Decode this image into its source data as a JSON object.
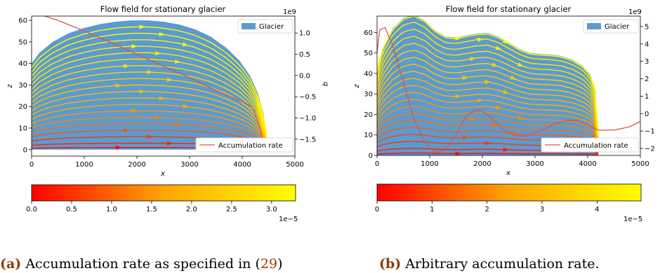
{
  "chart_data": [
    {
      "type": "streamplot",
      "panel": "a",
      "title": "Flow field for stationary glacier",
      "xlabel": "x",
      "ylabel": "z",
      "y2label": "q",
      "xlim": [
        0,
        5000
      ],
      "ylim": [
        -3,
        62
      ],
      "y2lim": [
        -1.9,
        1.4
      ],
      "x_ticks": [
        0,
        1000,
        2000,
        3000,
        4000,
        5000
      ],
      "y_ticks": [
        0,
        10,
        20,
        30,
        40,
        50,
        60
      ],
      "y2_ticks": [
        1.0,
        0.5,
        0.0,
        -0.5,
        -1.0,
        -1.5
      ],
      "y2_tick_labels": [
        "1.0",
        "0.5",
        "0.0",
        "−0.5",
        "−1.0",
        "−1.5"
      ],
      "y2_offset_label": "1e9",
      "glacier_color": "#5b9bd0",
      "glacier_surface": {
        "x": [
          0,
          150,
          400,
          700,
          1000,
          1300,
          1600,
          1900,
          2200,
          2500,
          2800,
          3100,
          3400,
          3700,
          3950,
          4150,
          4300,
          4400,
          4450,
          4500
        ],
        "z": [
          40,
          45,
          50,
          54,
          56.5,
          58.3,
          59.4,
          60.0,
          60.0,
          59.4,
          58.1,
          55.9,
          52.5,
          47.2,
          41.3,
          34.2,
          26,
          17,
          9,
          0
        ]
      },
      "accumulation_rate": {
        "x": [
          0,
          200,
          500,
          1000,
          1500,
          2000,
          2500,
          3000,
          3500,
          4000,
          4200,
          4350,
          4420,
          4450
        ],
        "q": [
          1.45,
          1.42,
          1.3,
          1.05,
          0.78,
          0.5,
          0.22,
          -0.05,
          -0.35,
          -0.62,
          -0.74,
          -1.3,
          -1.75,
          -1.75
        ]
      },
      "legend": [
        "Glacier",
        "Accumulation rate"
      ],
      "colorbar": {
        "colors": [
          "#ff0000",
          "#ffa500",
          "#ffff00"
        ],
        "min": 0.0,
        "max": 3.3,
        "ticks": [
          0.0,
          0.5,
          1.0,
          1.5,
          2.0,
          2.5,
          3.0
        ],
        "tick_labels": [
          "0.0",
          "0.5",
          "1.0",
          "1.5",
          "2.0",
          "2.5",
          "3.0"
        ],
        "offset_label": "1e−5"
      },
      "streamlines": [
        {
          "z0": 1,
          "speed": 0.03
        },
        {
          "z0": 3,
          "speed": 0.1
        },
        {
          "z0": 6,
          "speed": 0.17
        },
        {
          "z0": 9,
          "speed": 0.25
        },
        {
          "z0": 12,
          "speed": 0.33
        },
        {
          "z0": 15,
          "speed": 0.4
        },
        {
          "z0": 18,
          "speed": 0.45
        },
        {
          "z0": 21,
          "speed": 0.5
        },
        {
          "z0": 24,
          "speed": 0.55
        },
        {
          "z0": 27,
          "speed": 0.6
        },
        {
          "z0": 30,
          "speed": 0.65
        },
        {
          "z0": 33,
          "speed": 0.7
        },
        {
          "z0": 36,
          "speed": 0.75
        },
        {
          "z0": 39,
          "speed": 0.79
        },
        {
          "z0": 42,
          "speed": 0.83
        },
        {
          "z0": 45,
          "speed": 0.87
        },
        {
          "z0": 48,
          "speed": 0.9
        },
        {
          "z0": 51,
          "speed": 0.93
        },
        {
          "z0": 54,
          "speed": 0.96
        },
        {
          "z0": 57,
          "speed": 0.98
        }
      ]
    },
    {
      "type": "streamplot",
      "panel": "b",
      "title": "Flow field for stationary glacier",
      "xlabel": "x",
      "ylabel": "z",
      "y2label": "",
      "xlim": [
        0,
        5000
      ],
      "ylim": [
        0,
        68
      ],
      "y2lim": [
        -2.4,
        5.6
      ],
      "x_ticks": [
        0,
        1000,
        2000,
        3000,
        4000,
        5000
      ],
      "y_ticks": [
        0,
        10,
        20,
        30,
        40,
        50,
        60
      ],
      "y2_ticks": [
        5,
        4,
        3,
        2,
        1,
        0,
        -1,
        -2
      ],
      "y2_tick_labels": [
        "5",
        "4",
        "3",
        "2",
        "1",
        "0",
        "−1",
        "−2"
      ],
      "y2_offset_label": "1e9",
      "glacier_color": "#5b9bd0",
      "glacier_surface": {
        "x": [
          0,
          100,
          300,
          500,
          700,
          900,
          1100,
          1300,
          1500,
          1700,
          1900,
          2100,
          2300,
          2500,
          2700,
          2900,
          3100,
          3300,
          3500,
          3700,
          3900,
          4050,
          4150,
          4200
        ],
        "z": [
          42,
          52,
          62,
          67,
          68.5,
          66,
          61,
          58,
          57.5,
          58.5,
          59.5,
          59.8,
          58,
          55,
          52,
          50,
          49.5,
          49.2,
          48.5,
          46.8,
          43.8,
          39.5,
          32,
          10
        ]
      },
      "accumulation_rate": {
        "x": [
          0,
          50,
          150,
          300,
          500,
          700,
          900,
          1100,
          1300,
          1500,
          1700,
          1900,
          2000,
          2200,
          2400,
          2600,
          2800,
          3000,
          3200,
          3400,
          3600,
          3800,
          4000,
          4200,
          4500,
          4800,
          5000
        ],
        "q": [
          3.5,
          4.8,
          4.95,
          3.9,
          1.8,
          -0.3,
          -1.6,
          -2.2,
          -2.1,
          -1.2,
          -0.1,
          0.2,
          0.15,
          -0.35,
          -0.9,
          -1.25,
          -1.3,
          -1.1,
          -0.85,
          -0.55,
          -0.4,
          -0.4,
          -0.65,
          -0.95,
          -0.95,
          -0.75,
          -0.45
        ]
      },
      "legend": [
        "Glacier",
        "Accumulation rate"
      ],
      "colorbar": {
        "colors": [
          "#ff0000",
          "#ffa500",
          "#ffff00"
        ],
        "min": 0,
        "max": 4.8,
        "ticks": [
          0,
          1,
          2,
          3,
          4
        ],
        "tick_labels": [
          "0",
          "1",
          "2",
          "3",
          "4"
        ],
        "offset_label": "1e−5"
      },
      "streamlines": [
        {
          "z0": 1,
          "speed": 0.03
        },
        {
          "z0": 3,
          "speed": 0.1
        },
        {
          "z0": 6,
          "speed": 0.16
        },
        {
          "z0": 9,
          "speed": 0.22
        },
        {
          "z0": 12,
          "speed": 0.28
        },
        {
          "z0": 15,
          "speed": 0.33
        },
        {
          "z0": 18,
          "speed": 0.38
        },
        {
          "z0": 21,
          "speed": 0.42
        },
        {
          "z0": 24,
          "speed": 0.46
        },
        {
          "z0": 27,
          "speed": 0.5
        },
        {
          "z0": 30,
          "speed": 0.54
        },
        {
          "z0": 33,
          "speed": 0.58
        },
        {
          "z0": 36,
          "speed": 0.62
        },
        {
          "z0": 39,
          "speed": 0.66
        },
        {
          "z0": 42,
          "speed": 0.7
        },
        {
          "z0": 45,
          "speed": 0.74
        },
        {
          "z0": 48,
          "speed": 0.78
        },
        {
          "z0": 51,
          "speed": 0.82
        },
        {
          "z0": 54,
          "speed": 0.86
        },
        {
          "z0": 57,
          "speed": 0.9
        },
        {
          "z0": 60,
          "speed": 0.94
        },
        {
          "z0": 63,
          "speed": 0.97
        }
      ]
    }
  ],
  "captions": [
    {
      "label": "(a)",
      "text": " Accumulation rate as specified in (",
      "ref": "29",
      "close": ")"
    },
    {
      "label": "(b)",
      "text": " Arbitrary accumulation rate."
    }
  ]
}
